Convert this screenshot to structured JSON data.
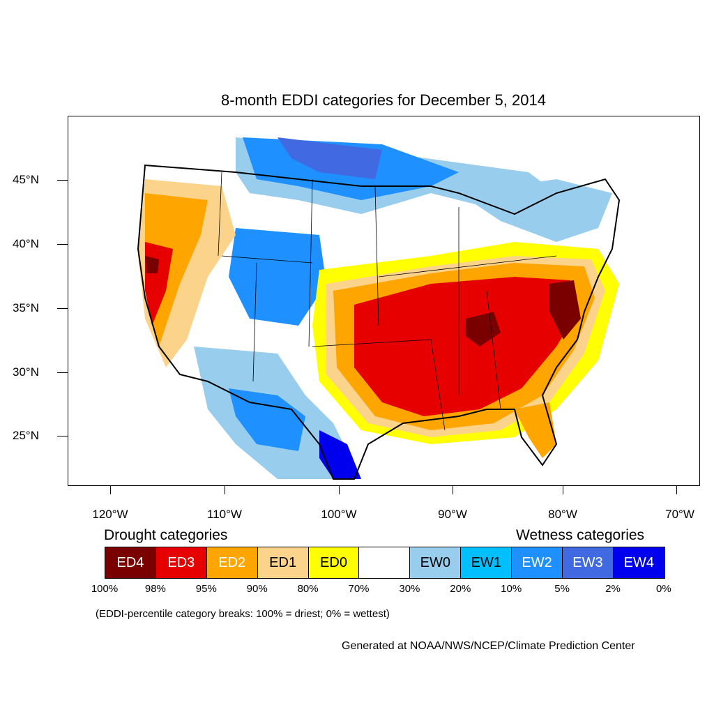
{
  "title": "8-month EDDI categories for December 5, 2014",
  "axes": {
    "lat_ticks": [
      "45°N",
      "40°N",
      "35°N",
      "30°N",
      "25°N"
    ],
    "lon_ticks": [
      "120°W",
      "110°W",
      "100°W",
      "90°W",
      "80°W",
      "70°W"
    ]
  },
  "legend": {
    "drought_heading": "Drought categories",
    "wetness_heading": "Wetness categories",
    "categories": [
      {
        "label": "ED4",
        "color": "#7a0000",
        "text_color": "#ffffff"
      },
      {
        "label": "ED3",
        "color": "#e60000",
        "text_color": "#ffffff"
      },
      {
        "label": "ED2",
        "color": "#ffa500",
        "text_color": "#ffffff"
      },
      {
        "label": "ED1",
        "color": "#fcd38b",
        "text_color": "#000000"
      },
      {
        "label": "ED0",
        "color": "#ffff00",
        "text_color": "#000000"
      },
      {
        "label": "",
        "color": "#ffffff",
        "text_color": "#000000"
      },
      {
        "label": "EW0",
        "color": "#98cdee",
        "text_color": "#000000"
      },
      {
        "label": "EW1",
        "color": "#00bfff",
        "text_color": "#000000"
      },
      {
        "label": "EW2",
        "color": "#1e90ff",
        "text_color": "#ffffff"
      },
      {
        "label": "EW3",
        "color": "#4169e1",
        "text_color": "#ffffff"
      },
      {
        "label": "EW4",
        "color": "#0000ee",
        "text_color": "#ffffff"
      }
    ],
    "breaks": [
      "100%",
      "98%",
      "95%",
      "90%",
      "80%",
      "70%",
      "30%",
      "20%",
      "10%",
      "5%",
      "2%",
      "0%"
    ]
  },
  "note": "(EDDI-percentile category breaks: 100% = driest; 0% = wettest)",
  "credit": "Generated at NOAA/NWS/NCEP/Climate Prediction Center"
}
